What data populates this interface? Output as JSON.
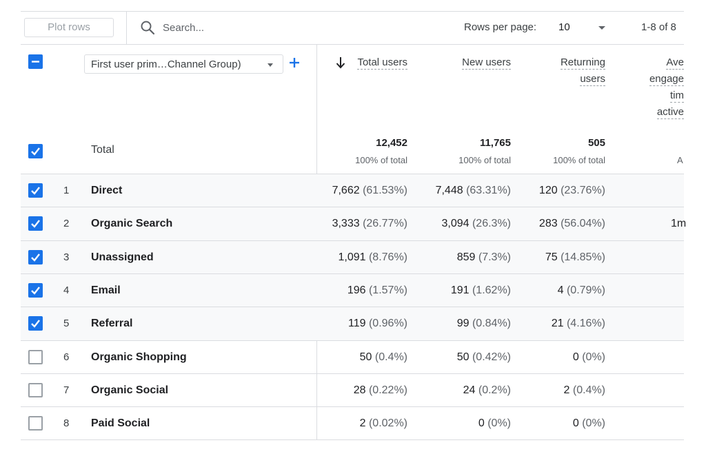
{
  "toolbar": {
    "plot_rows_label": "Plot rows",
    "search_placeholder": "Search...",
    "rows_per_page_label": "Rows per page:",
    "rows_per_page_value": "10",
    "range_text": "1-8 of 8"
  },
  "table": {
    "dimension_select": "First user prim…Channel Group)",
    "columns": [
      {
        "label": "Total users",
        "sorted": "desc"
      },
      {
        "label": "New users"
      },
      {
        "label": "Returning users",
        "lines": [
          "Returning",
          "users"
        ]
      },
      {
        "label": "Ave engage tim active",
        "lines": [
          "Ave",
          "engage",
          "tim",
          "active"
        ]
      }
    ],
    "total": {
      "label": "Total",
      "values": [
        "12,452",
        "11,765",
        "505"
      ],
      "pcts": [
        "100% of total",
        "100% of total",
        "100% of total"
      ],
      "cut_pct": "A"
    },
    "rows": [
      {
        "index": "1",
        "name": "Direct",
        "checked": true,
        "v1": "7,662",
        "p1": "(61.53%)",
        "v2": "7,448",
        "p2": "(63.31%)",
        "v3": "120",
        "p3": "(23.76%)",
        "cut": ""
      },
      {
        "index": "2",
        "name": "Organic Search",
        "checked": true,
        "v1": "3,333",
        "p1": "(26.77%)",
        "v2": "3,094",
        "p2": "(26.3%)",
        "v3": "283",
        "p3": "(56.04%)",
        "cut": "1m"
      },
      {
        "index": "3",
        "name": "Unassigned",
        "checked": true,
        "v1": "1,091",
        "p1": "(8.76%)",
        "v2": "859",
        "p2": "(7.3%)",
        "v3": "75",
        "p3": "(14.85%)",
        "cut": ""
      },
      {
        "index": "4",
        "name": "Email",
        "checked": true,
        "v1": "196",
        "p1": "(1.57%)",
        "v2": "191",
        "p2": "(1.62%)",
        "v3": "4",
        "p3": "(0.79%)",
        "cut": ""
      },
      {
        "index": "5",
        "name": "Referral",
        "checked": true,
        "v1": "119",
        "p1": "(0.96%)",
        "v2": "99",
        "p2": "(0.84%)",
        "v3": "21",
        "p3": "(4.16%)",
        "cut": ""
      },
      {
        "index": "6",
        "name": "Organic Shopping",
        "checked": false,
        "v1": "50",
        "p1": "(0.4%)",
        "v2": "50",
        "p2": "(0.42%)",
        "v3": "0",
        "p3": "(0%)",
        "cut": ""
      },
      {
        "index": "7",
        "name": "Organic Social",
        "checked": false,
        "v1": "28",
        "p1": "(0.22%)",
        "v2": "24",
        "p2": "(0.2%)",
        "v3": "2",
        "p3": "(0.4%)",
        "cut": ""
      },
      {
        "index": "8",
        "name": "Paid Social",
        "checked": false,
        "v1": "2",
        "p1": "(0.02%)",
        "v2": "0",
        "p2": "(0%)",
        "v3": "0",
        "p3": "(0%)",
        "cut": ""
      }
    ]
  },
  "colors": {
    "accent": "#1a73e8",
    "border": "#dadce0",
    "row_alt": "#f8f9fa"
  }
}
